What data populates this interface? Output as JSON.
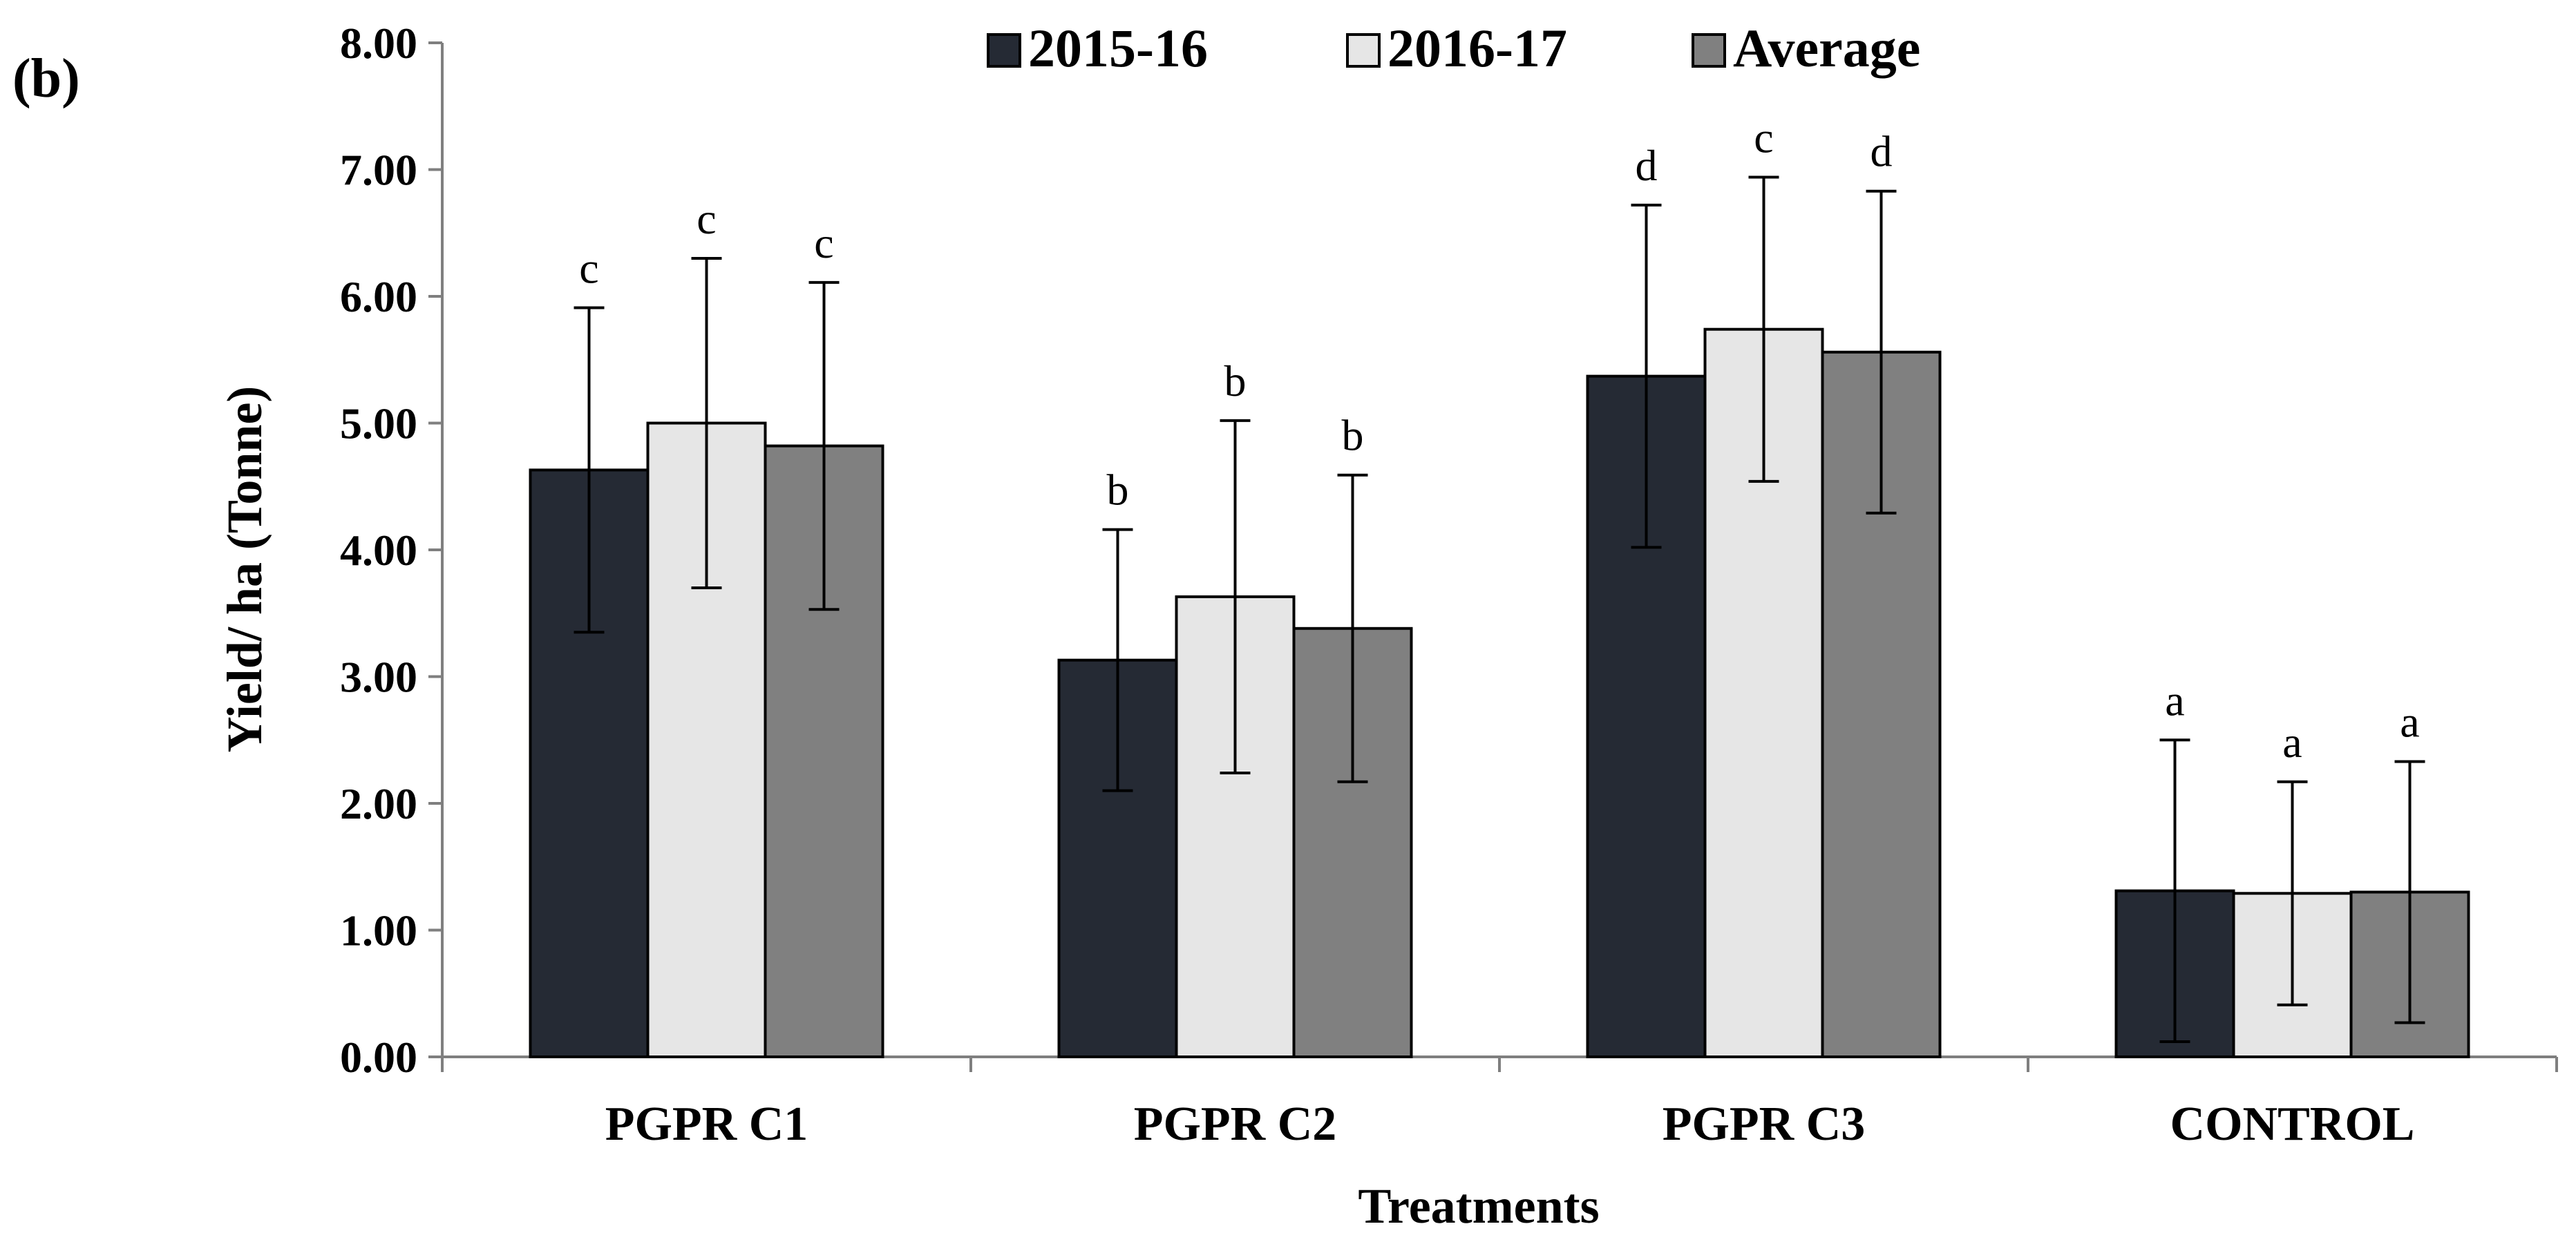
{
  "panel_label": "(b)",
  "chart_data": {
    "type": "bar",
    "title": "",
    "xlabel": "Treatments",
    "ylabel": "Yield/ ha (Tonne)",
    "ylim": [
      0,
      8
    ],
    "yticks": [
      "0.00",
      "1.00",
      "2.00",
      "3.00",
      "4.00",
      "5.00",
      "6.00",
      "7.00",
      "8.00"
    ],
    "categories": [
      "PGPR C1",
      "PGPR C2",
      "PGPR C3",
      "CONTROL"
    ],
    "grid": false,
    "legend_position": "top",
    "series": [
      {
        "name": "2015-16",
        "color": "#252a34",
        "values": [
          4.63,
          3.13,
          5.37,
          1.31
        ],
        "error": [
          1.28,
          1.03,
          1.35,
          1.19
        ],
        "labels": [
          "c",
          "b",
          "d",
          "a"
        ]
      },
      {
        "name": "2016-17",
        "color": "#e6e6e6",
        "values": [
          5.0,
          3.63,
          5.74,
          1.29
        ],
        "error": [
          1.3,
          1.39,
          1.2,
          0.88
        ],
        "labels": [
          "c",
          "b",
          "c",
          "a"
        ]
      },
      {
        "name": "Average",
        "color": "#808080",
        "values": [
          4.82,
          3.38,
          5.56,
          1.3
        ],
        "error": [
          1.29,
          1.21,
          1.27,
          1.03
        ],
        "labels": [
          "c",
          "b",
          "d",
          "a"
        ]
      }
    ]
  }
}
